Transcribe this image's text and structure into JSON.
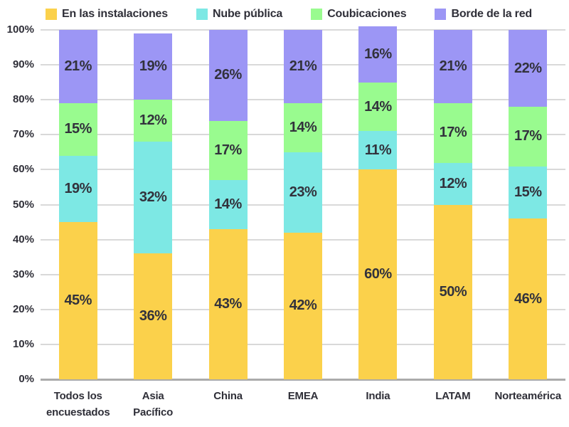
{
  "chart_data": {
    "type": "bar",
    "stacked": true,
    "title": "",
    "xlabel": "",
    "ylabel": "",
    "ylim": [
      0,
      100
    ],
    "ytick_step": 10,
    "ytick_suffix": "%",
    "value_suffix": "%",
    "grid": true,
    "legend_position": "top",
    "categories": [
      "Todos los\nencuestados",
      "Asia\nPacífico",
      "China",
      "EMEA",
      "India",
      "LATAM",
      "Norteamérica"
    ],
    "series": [
      {
        "name": "En las instalaciones",
        "color": "#fbd14b",
        "values": [
          45,
          36,
          43,
          42,
          60,
          50,
          46
        ]
      },
      {
        "name": "Nube pública",
        "color": "#7de8e4",
        "values": [
          19,
          32,
          14,
          23,
          11,
          12,
          15
        ]
      },
      {
        "name": "Coubicaciones",
        "color": "#99fb8f",
        "values": [
          15,
          12,
          17,
          14,
          14,
          17,
          17
        ]
      },
      {
        "name": "Borde de la red",
        "color": "#9c96f5",
        "values": [
          21,
          19,
          26,
          21,
          16,
          21,
          22
        ]
      }
    ],
    "colors": {
      "text": "#2f2f38",
      "segment_label": "#32323c",
      "gridline": "#d9d9d9",
      "axis_line": "#ababab",
      "background": "#ffffff"
    }
  }
}
